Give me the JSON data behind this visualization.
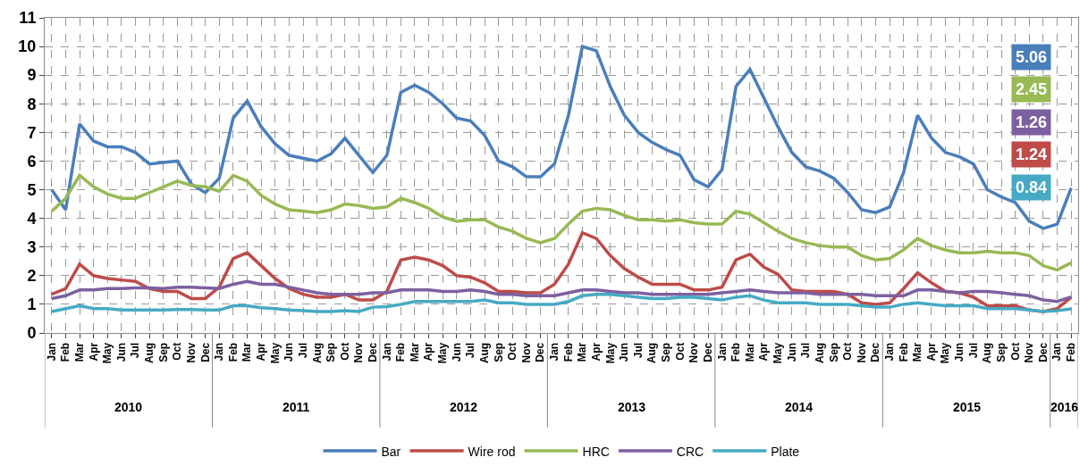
{
  "chart_data": {
    "type": "line",
    "categories": [
      "Jan",
      "Feb",
      "Mar",
      "Apr",
      "May",
      "Jun",
      "Jul",
      "Aug",
      "Sep",
      "Oct",
      "Nov",
      "Dec",
      "Jan",
      "Feb",
      "Mar",
      "Apr",
      "May",
      "Jun",
      "Jul",
      "Aug",
      "Sep",
      "Oct",
      "Nov",
      "Dec",
      "Jan",
      "Feb",
      "Mar",
      "Apr",
      "May",
      "Jun",
      "Jul",
      "Aug",
      "Sep",
      "Oct",
      "Nov",
      "Dec",
      "Jan",
      "Feb",
      "Mar",
      "Apr",
      "May",
      "Jun",
      "Jul",
      "Aug",
      "Sep",
      "Oct",
      "Nov",
      "Dec",
      "Jan",
      "Feb",
      "Mar",
      "Apr",
      "May",
      "Jun",
      "Jul",
      "Aug",
      "Sep",
      "Oct",
      "Nov",
      "Dec",
      "Jan",
      "Feb",
      "Mar",
      "Apr",
      "May",
      "Jun",
      "Jul",
      "Aug",
      "Sep",
      "Oct",
      "Nov",
      "Dec",
      "Jan",
      "Feb"
    ],
    "annotations": [
      "2010",
      "2011",
      "2012",
      "2013",
      "2014",
      "2015",
      "2016",
      "5.06",
      "2.45",
      "1.26",
      "1.24",
      "0.84"
    ],
    "series": [
      {
        "name": "Bar",
        "color": "#4a7ebb",
        "values": [
          5.0,
          4.3,
          7.3,
          6.7,
          6.5,
          6.5,
          6.3,
          5.9,
          5.95,
          6.0,
          5.2,
          4.9,
          5.4,
          7.5,
          8.1,
          7.2,
          6.6,
          6.2,
          6.1,
          6.0,
          6.25,
          6.8,
          6.2,
          5.6,
          6.2,
          8.4,
          8.65,
          8.4,
          8.0,
          7.5,
          7.4,
          6.9,
          6.0,
          5.8,
          5.45,
          5.45,
          5.9,
          7.6,
          10.0,
          9.85,
          8.6,
          7.6,
          7.0,
          6.65,
          6.4,
          6.2,
          5.35,
          5.1,
          5.7,
          8.6,
          9.2,
          8.2,
          7.2,
          6.3,
          5.8,
          5.65,
          5.4,
          4.9,
          4.3,
          4.2,
          4.4,
          5.6,
          7.6,
          6.8,
          6.3,
          6.15,
          5.9,
          5.0,
          4.75,
          4.55,
          3.9,
          3.65,
          3.8,
          5.06
        ]
      },
      {
        "name": "Wire rod",
        "color": "#be4b48",
        "values": [
          1.35,
          1.55,
          2.4,
          2.0,
          1.9,
          1.85,
          1.8,
          1.55,
          1.45,
          1.45,
          1.2,
          1.2,
          1.6,
          2.6,
          2.8,
          2.35,
          1.9,
          1.55,
          1.35,
          1.25,
          1.25,
          1.35,
          1.15,
          1.15,
          1.45,
          2.55,
          2.65,
          2.55,
          2.35,
          2.0,
          1.95,
          1.75,
          1.45,
          1.45,
          1.4,
          1.4,
          1.7,
          2.4,
          3.5,
          3.3,
          2.7,
          2.25,
          1.95,
          1.7,
          1.7,
          1.7,
          1.5,
          1.5,
          1.6,
          2.55,
          2.75,
          2.3,
          2.05,
          1.5,
          1.45,
          1.45,
          1.45,
          1.35,
          1.05,
          1.0,
          1.05,
          1.55,
          2.1,
          1.75,
          1.45,
          1.4,
          1.25,
          0.95,
          0.95,
          0.95,
          0.8,
          0.75,
          0.85,
          1.24
        ]
      },
      {
        "name": "HRC",
        "color": "#98b954",
        "values": [
          4.25,
          4.7,
          5.5,
          5.1,
          4.85,
          4.7,
          4.7,
          4.9,
          5.1,
          5.3,
          5.15,
          5.1,
          4.95,
          5.5,
          5.3,
          4.8,
          4.5,
          4.3,
          4.25,
          4.2,
          4.3,
          4.5,
          4.45,
          4.35,
          4.4,
          4.7,
          4.55,
          4.35,
          4.05,
          3.9,
          3.95,
          3.95,
          3.7,
          3.55,
          3.3,
          3.15,
          3.3,
          3.8,
          4.25,
          4.35,
          4.3,
          4.1,
          3.95,
          3.95,
          3.9,
          3.95,
          3.85,
          3.8,
          3.8,
          4.25,
          4.15,
          3.85,
          3.55,
          3.3,
          3.15,
          3.05,
          3.0,
          3.0,
          2.7,
          2.55,
          2.6,
          2.9,
          3.3,
          3.05,
          2.9,
          2.8,
          2.8,
          2.85,
          2.8,
          2.8,
          2.7,
          2.35,
          2.2,
          2.45
        ]
      },
      {
        "name": "CRC",
        "color": "#7d60a0",
        "values": [
          1.2,
          1.3,
          1.5,
          1.5,
          1.55,
          1.55,
          1.57,
          1.57,
          1.55,
          1.6,
          1.6,
          1.57,
          1.55,
          1.7,
          1.8,
          1.7,
          1.7,
          1.6,
          1.5,
          1.4,
          1.35,
          1.35,
          1.35,
          1.4,
          1.4,
          1.5,
          1.5,
          1.5,
          1.45,
          1.45,
          1.5,
          1.45,
          1.35,
          1.35,
          1.3,
          1.3,
          1.3,
          1.4,
          1.5,
          1.5,
          1.45,
          1.4,
          1.4,
          1.35,
          1.35,
          1.35,
          1.35,
          1.35,
          1.4,
          1.45,
          1.5,
          1.45,
          1.4,
          1.4,
          1.4,
          1.35,
          1.35,
          1.35,
          1.35,
          1.3,
          1.3,
          1.3,
          1.5,
          1.5,
          1.45,
          1.4,
          1.45,
          1.45,
          1.4,
          1.35,
          1.3,
          1.15,
          1.1,
          1.26
        ]
      },
      {
        "name": "Plate",
        "color": "#46aac5",
        "values": [
          0.75,
          0.85,
          0.95,
          0.85,
          0.85,
          0.8,
          0.8,
          0.8,
          0.8,
          0.82,
          0.82,
          0.8,
          0.8,
          0.95,
          0.95,
          0.88,
          0.85,
          0.8,
          0.78,
          0.75,
          0.75,
          0.78,
          0.75,
          0.9,
          0.92,
          1.0,
          1.1,
          1.1,
          1.1,
          1.1,
          1.1,
          1.15,
          1.05,
          1.05,
          1.0,
          1.0,
          1.0,
          1.1,
          1.3,
          1.35,
          1.35,
          1.3,
          1.25,
          1.2,
          1.2,
          1.25,
          1.25,
          1.2,
          1.15,
          1.25,
          1.3,
          1.15,
          1.05,
          1.05,
          1.05,
          1.0,
          1.0,
          1.0,
          0.95,
          0.9,
          0.9,
          1.0,
          1.05,
          1.0,
          0.95,
          0.95,
          0.95,
          0.85,
          0.85,
          0.85,
          0.8,
          0.75,
          0.78,
          0.84
        ]
      }
    ],
    "ylim": [
      0,
      11
    ],
    "yticks": [
      0,
      1,
      2,
      3,
      4,
      5,
      6,
      7,
      8,
      9,
      10,
      11
    ],
    "grid": true,
    "legend": "bottom",
    "marker": "none",
    "line_style": "solid"
  }
}
